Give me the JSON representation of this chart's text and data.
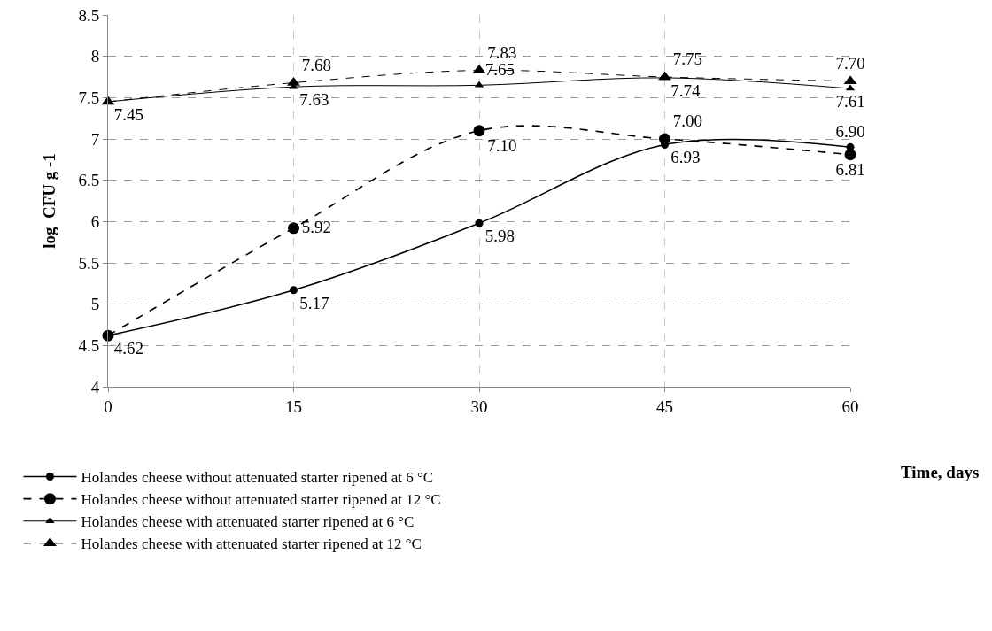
{
  "chart_data": {
    "type": "line",
    "xlabel": "Time, days",
    "ylabel": "log  CFU g -1",
    "x": [
      0,
      15,
      30,
      45,
      60
    ],
    "xlim": [
      0,
      60
    ],
    "xticks": [
      0,
      15,
      30,
      45,
      60
    ],
    "ylim": [
      4,
      8.5
    ],
    "yticks": [
      4,
      4.5,
      5,
      5.5,
      6,
      6.5,
      7,
      7.5,
      8,
      8.5
    ],
    "grid": true,
    "legend": "bottom left",
    "series": [
      {
        "name": "Holandes cheese without attenuated starter ripened at 6 °C",
        "color": "#000000",
        "marker": "circle",
        "line_style": "solid",
        "values": [
          4.62,
          5.17,
          5.98,
          6.93,
          6.9
        ],
        "value_labels": [
          "4.62",
          "5.17",
          "5.98",
          "6.93",
          "6.90"
        ]
      },
      {
        "name": "Holandes cheese without attenuated starter ripened at 12 °C",
        "color": "#000000",
        "marker": "circle",
        "line_style": "dashed",
        "values": [
          4.62,
          5.92,
          7.1,
          7.0,
          6.81
        ],
        "value_labels": [
          null,
          "5.92",
          "7.10",
          "7.00",
          "6.81"
        ]
      },
      {
        "name": "Holandes cheese with attenuated starter ripened at 6 °C",
        "color": "#000000",
        "marker": "triangle",
        "line_style": "solid",
        "values": [
          7.45,
          7.63,
          7.65,
          7.74,
          7.61
        ],
        "value_labels": [
          "7.45",
          "7.63",
          "7.65",
          "7.74",
          "7.61"
        ]
      },
      {
        "name": "Holandes cheese with attenuated starter ripened at 12 °C",
        "color": "#000000",
        "marker": "triangle",
        "line_style": "dashed",
        "values": [
          7.45,
          7.68,
          7.83,
          7.75,
          7.7
        ],
        "value_labels": [
          null,
          "7.68",
          "7.83",
          "7.75",
          "7.70"
        ]
      }
    ]
  }
}
